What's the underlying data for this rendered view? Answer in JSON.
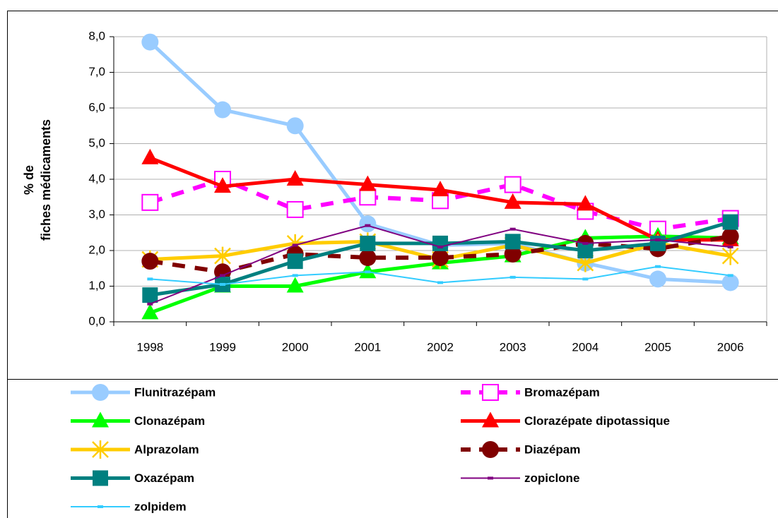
{
  "chart_data": {
    "type": "line",
    "y_label": [
      "% de",
      "fiches médicaments"
    ],
    "categories": [
      "1998",
      "1999",
      "2000",
      "2001",
      "2002",
      "2003",
      "2004",
      "2005",
      "2006"
    ],
    "ylim": [
      0,
      8
    ],
    "yticks": [
      {
        "value": 0,
        "label": "0,0"
      },
      {
        "value": 1,
        "label": "1,0"
      },
      {
        "value": 2,
        "label": "2,0"
      },
      {
        "value": 3,
        "label": "3,0"
      },
      {
        "value": 4,
        "label": "4,0"
      },
      {
        "value": 5,
        "label": "5,0"
      },
      {
        "value": 6,
        "label": "6,0"
      },
      {
        "value": 7,
        "label": "7,0"
      },
      {
        "value": 8,
        "label": "8,0"
      }
    ],
    "grid": true,
    "legend": "bottom",
    "series": [
      {
        "name": "Flunitrazépam",
        "color": "#99ccff",
        "marker": "circle",
        "style": "thick",
        "values": [
          7.85,
          5.95,
          5.5,
          2.75,
          2.15,
          2.2,
          1.65,
          1.2,
          1.1
        ]
      },
      {
        "name": "Bromazépam",
        "color": "#ff00ff",
        "marker": "open-square",
        "style": "dashed",
        "values": [
          3.35,
          4.0,
          3.15,
          3.5,
          3.4,
          3.85,
          3.1,
          2.6,
          2.9
        ]
      },
      {
        "name": "Clonazépam",
        "color": "#00ff00",
        "marker": "triangle",
        "style": "thick",
        "values": [
          0.25,
          1.0,
          1.0,
          1.4,
          1.65,
          1.85,
          2.35,
          2.4,
          2.35
        ]
      },
      {
        "name": "Clorazépate dipotassique",
        "color": "#ff0000",
        "marker": "triangle",
        "style": "thick",
        "values": [
          4.6,
          3.8,
          4.0,
          3.85,
          3.7,
          3.35,
          3.3,
          2.3,
          2.3
        ]
      },
      {
        "name": "Alprazolam",
        "color": "#ffcc00",
        "marker": "asterisk",
        "style": "thick",
        "values": [
          1.75,
          1.85,
          2.2,
          2.25,
          1.75,
          2.15,
          1.65,
          2.2,
          1.85
        ]
      },
      {
        "name": "Diazépam",
        "color": "#800000",
        "marker": "circle",
        "style": "dashed",
        "values": [
          1.7,
          1.4,
          1.9,
          1.8,
          1.8,
          1.9,
          2.2,
          2.05,
          2.4
        ]
      },
      {
        "name": "Oxazépam",
        "color": "#008080",
        "marker": "square",
        "style": "thick",
        "values": [
          0.75,
          1.05,
          1.7,
          2.2,
          2.2,
          2.25,
          2.0,
          2.2,
          2.8
        ]
      },
      {
        "name": "zopiclone",
        "color": "#800080",
        "marker": "dash",
        "style": "thin",
        "values": [
          0.5,
          1.3,
          2.15,
          2.7,
          2.1,
          2.6,
          2.2,
          2.3,
          2.1
        ]
      },
      {
        "name": "zolpidem",
        "color": "#33ccff",
        "marker": "dash",
        "style": "thin",
        "values": [
          1.2,
          1.05,
          1.3,
          1.4,
          1.1,
          1.25,
          1.2,
          1.55,
          1.3
        ]
      }
    ]
  }
}
